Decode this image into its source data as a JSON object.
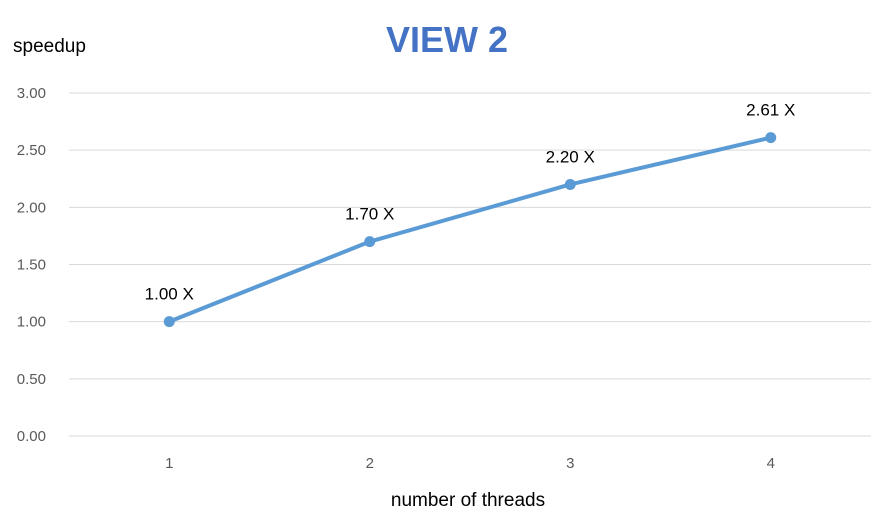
{
  "chart_data": {
    "type": "line",
    "title": "VIEW 2",
    "xlabel": "number of threads",
    "ylabel": "speedup",
    "categories": [
      "1",
      "2",
      "3",
      "4"
    ],
    "series": [
      {
        "values": [
          1.0,
          1.7,
          2.2,
          2.61
        ],
        "data_labels": [
          "1.00 X",
          "1.70 X",
          "2.20 X",
          "2.61 X"
        ]
      }
    ],
    "ylim": [
      0,
      3
    ],
    "y_ticks": [
      "0.00",
      "0.50",
      "1.00",
      "1.50",
      "2.00",
      "2.50",
      "3.00"
    ],
    "y_tick_values": [
      0,
      0.5,
      1,
      1.5,
      2,
      2.5,
      3
    ],
    "grid": true,
    "legend": "none",
    "colors": {
      "series": "#5b9bd5",
      "title": "#4472c4",
      "gridline": "#d9d9d9"
    }
  }
}
